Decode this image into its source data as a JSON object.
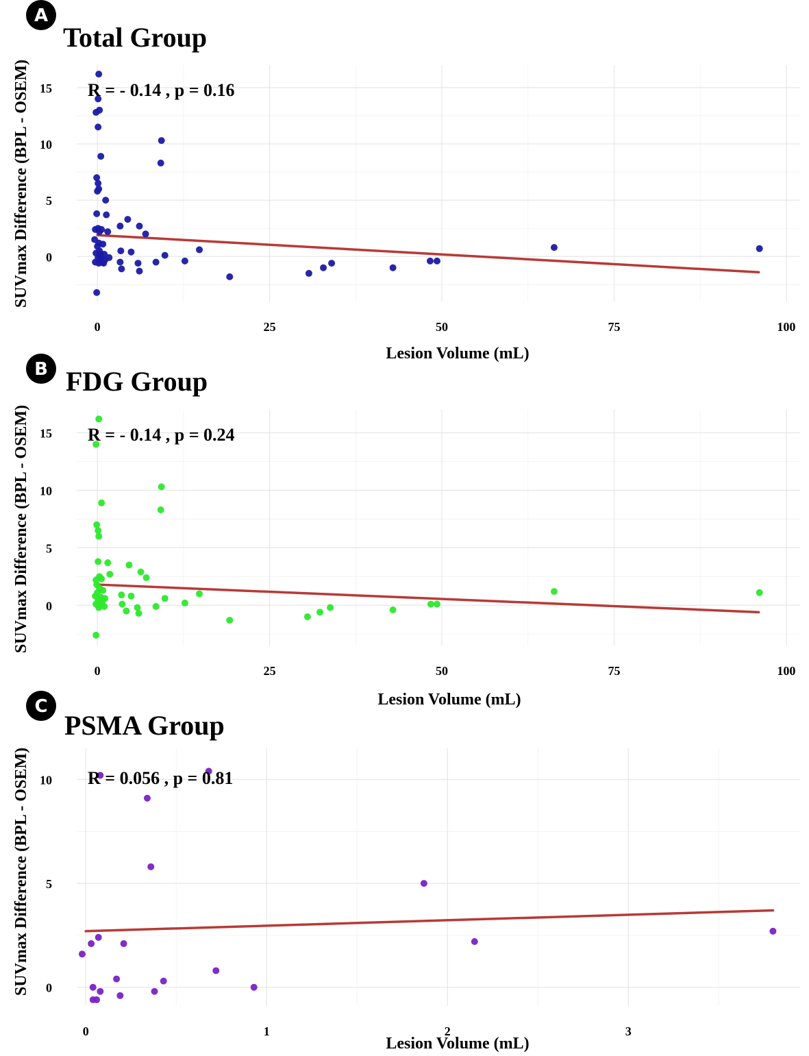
{
  "figure": {
    "panel_letters": [
      "A",
      "B",
      "C"
    ]
  },
  "chart_data": [
    {
      "type": "scatter",
      "panel": "A",
      "title": "Total Group",
      "xlabel": "Lesion Volume (mL)",
      "ylabel": "SUVmax Difference (BPL - OSEM)",
      "annotation": "R = - 0.14 , p = 0.16",
      "xlim": [
        -3,
        102
      ],
      "ylim": [
        -4,
        17
      ],
      "xticks": [
        0,
        25,
        50,
        75,
        100
      ],
      "yticks": [
        0,
        5,
        10,
        15
      ],
      "point_color": "#1a1aa6",
      "trend_color": "#b83a36",
      "trend": {
        "x": [
          0,
          96
        ],
        "y": [
          1.9,
          -1.4
        ]
      },
      "points": [
        [
          0.2,
          16.2
        ],
        [
          0.1,
          14
        ],
        [
          0.3,
          13
        ],
        [
          -0.2,
          12.8
        ],
        [
          0.1,
          11.5
        ],
        [
          0.5,
          8.9
        ],
        [
          9.3,
          10.3
        ],
        [
          9.2,
          8.3
        ],
        [
          -0.1,
          7
        ],
        [
          0.1,
          6.5
        ],
        [
          0.2,
          6
        ],
        [
          0,
          5.8
        ],
        [
          1.2,
          5
        ],
        [
          1.3,
          3.7
        ],
        [
          -0.1,
          3.8
        ],
        [
          0.3,
          2.2
        ],
        [
          -0.3,
          2.4
        ],
        [
          0.1,
          2.5
        ],
        [
          0.6,
          2.4
        ],
        [
          1.5,
          2.2
        ],
        [
          3.3,
          2.7
        ],
        [
          4.4,
          3.3
        ],
        [
          6.1,
          2.7
        ],
        [
          7.0,
          2.0
        ],
        [
          -0.4,
          1.5
        ],
        [
          0.2,
          1.2
        ],
        [
          0.8,
          1.1
        ],
        [
          0,
          0.9
        ],
        [
          0.3,
          0.5
        ],
        [
          -0.2,
          0.3
        ],
        [
          0.5,
          0.2
        ],
        [
          1.0,
          0.2
        ],
        [
          0.1,
          -0.1
        ],
        [
          0.6,
          -0.2
        ],
        [
          -0.3,
          -0.5
        ],
        [
          0.2,
          -0.6
        ],
        [
          0.7,
          -0.5
        ],
        [
          1.1,
          -0.3
        ],
        [
          1.7,
          -0.1
        ],
        [
          0.4,
          0.1
        ],
        [
          0.9,
          -0.6
        ],
        [
          3.3,
          -0.5
        ],
        [
          3.5,
          -1.1
        ],
        [
          4.9,
          0.4
        ],
        [
          3.4,
          0.5
        ],
        [
          5.9,
          -0.6
        ],
        [
          6.1,
          -1.3
        ],
        [
          8.5,
          -0.5
        ],
        [
          9.8,
          0.1
        ],
        [
          12.7,
          -0.4
        ],
        [
          14.8,
          0.6
        ],
        [
          19.2,
          -1.8
        ],
        [
          30.7,
          -1.5
        ],
        [
          32.8,
          -1.0
        ],
        [
          34.0,
          -0.6
        ],
        [
          42.9,
          -1.0
        ],
        [
          48.3,
          -0.4
        ],
        [
          49.3,
          -0.4
        ],
        [
          66.3,
          0.8
        ],
        [
          96.1,
          0.7
        ],
        [
          -0.1,
          -3.2
        ]
      ]
    },
    {
      "type": "scatter",
      "panel": "B",
      "title": "FDG Group",
      "xlabel": "Lesion Volume (mL)",
      "ylabel": "SUVmax Difference (BPL - OSEM)",
      "annotation": "R = - 0.14 , p = 0.24",
      "xlim": [
        -3,
        102
      ],
      "ylim": [
        -3.5,
        17
      ],
      "xticks": [
        0,
        25,
        50,
        75,
        100
      ],
      "yticks": [
        0,
        5,
        10,
        15
      ],
      "point_color": "#2de82d",
      "trend_color": "#b83a36",
      "trend": {
        "x": [
          0,
          96
        ],
        "y": [
          1.8,
          -0.6
        ]
      },
      "points": [
        [
          0.2,
          16.2
        ],
        [
          -0.2,
          14
        ],
        [
          0.6,
          8.9
        ],
        [
          9.3,
          10.3
        ],
        [
          9.2,
          8.3
        ],
        [
          -0.1,
          7
        ],
        [
          0.1,
          6.5
        ],
        [
          0.2,
          6
        ],
        [
          0.1,
          3.8
        ],
        [
          1.5,
          3.7
        ],
        [
          4.6,
          3.5
        ],
        [
          6.3,
          2.9
        ],
        [
          7.1,
          2.4
        ],
        [
          1.8,
          2.7
        ],
        [
          0.3,
          2.5
        ],
        [
          -0.2,
          2.2
        ],
        [
          0.6,
          2.3
        ],
        [
          -0.1,
          1.8
        ],
        [
          0.3,
          1.5
        ],
        [
          0.8,
          1.3
        ],
        [
          0,
          1.1
        ],
        [
          -0.3,
          0.8
        ],
        [
          0.5,
          0.7
        ],
        [
          1.1,
          0.6
        ],
        [
          0.1,
          0.4
        ],
        [
          0.7,
          0.3
        ],
        [
          -0.2,
          0.1
        ],
        [
          0.4,
          0
        ],
        [
          1.0,
          -0.1
        ],
        [
          0.2,
          -0.2
        ],
        [
          0.6,
          0.5
        ],
        [
          3.5,
          0.9
        ],
        [
          4.9,
          0.8
        ],
        [
          3.6,
          0.1
        ],
        [
          4.2,
          -0.5
        ],
        [
          5.8,
          -0.2
        ],
        [
          6.0,
          -0.7
        ],
        [
          8.5,
          -0.1
        ],
        [
          9.8,
          0.6
        ],
        [
          12.7,
          0.2
        ],
        [
          14.8,
          1.0
        ],
        [
          19.2,
          -1.3
        ],
        [
          30.5,
          -1.0
        ],
        [
          32.3,
          -0.6
        ],
        [
          33.8,
          -0.2
        ],
        [
          42.9,
          -0.4
        ],
        [
          48.4,
          0.1
        ],
        [
          49.3,
          0.1
        ],
        [
          66.3,
          1.2
        ],
        [
          96.1,
          1.1
        ],
        [
          -0.2,
          -2.6
        ]
      ]
    },
    {
      "type": "scatter",
      "panel": "C",
      "title": "PSMA Group",
      "xlabel": "Lesion Volume (mL)",
      "ylabel": "SUVmax Difference (BPL - OSEM)",
      "annotation": "R = 0.056 , p = 0.81",
      "xlim": [
        -0.05,
        3.95
      ],
      "ylim": [
        -0.9,
        11.5
      ],
      "xticks": [
        0,
        1,
        2,
        3
      ],
      "yticks": [
        0,
        5,
        10
      ],
      "point_color": "#7a22c4",
      "trend_color": "#b83a36",
      "trend": {
        "x": [
          0,
          3.8
        ],
        "y": [
          2.7,
          3.7
        ]
      },
      "points": [
        [
          0.08,
          10.2
        ],
        [
          0.68,
          10.4
        ],
        [
          0.34,
          9.1
        ],
        [
          0.36,
          5.8
        ],
        [
          1.87,
          5.0
        ],
        [
          2.15,
          2.2
        ],
        [
          3.8,
          2.7
        ],
        [
          -0.02,
          1.6
        ],
        [
          0.03,
          2.1
        ],
        [
          0.07,
          2.4
        ],
        [
          0.21,
          2.1
        ],
        [
          0.72,
          0.8
        ],
        [
          0.17,
          0.4
        ],
        [
          0.43,
          0.3
        ],
        [
          0.04,
          0
        ],
        [
          0.93,
          0
        ],
        [
          0.38,
          -0.2
        ],
        [
          0.08,
          -0.2
        ],
        [
          0.19,
          -0.4
        ],
        [
          0.04,
          -0.6
        ],
        [
          0.06,
          -0.6
        ]
      ]
    }
  ]
}
